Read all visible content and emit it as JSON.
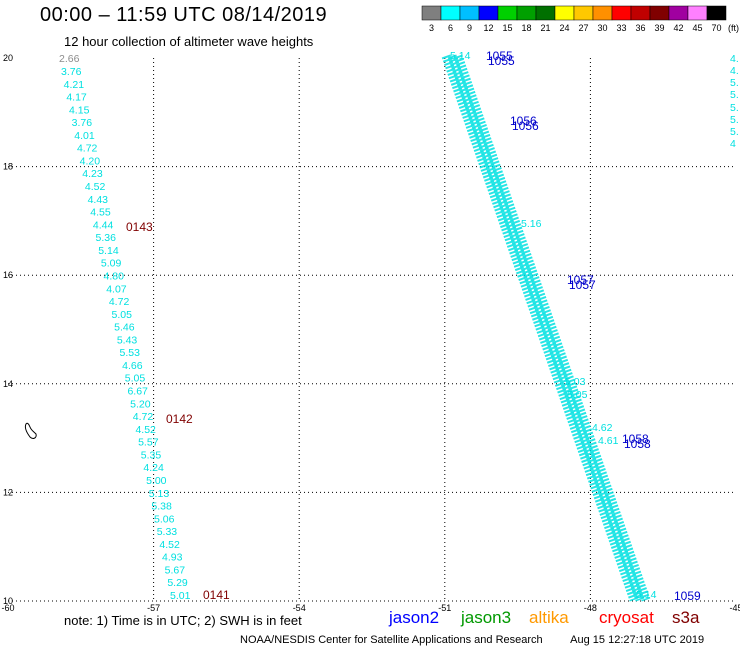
{
  "header": {
    "title": "00:00 – 11:59 UTC 08/14/2019",
    "subtitle": "12 hour collection of altimeter wave heights"
  },
  "legend": {
    "unit": "(ft)",
    "bins": [
      {
        "label": "3",
        "color": "#7f7f7f"
      },
      {
        "label": "6",
        "color": "#00ffff"
      },
      {
        "label": "9",
        "color": "#00bfff"
      },
      {
        "label": "12",
        "color": "#0000ff"
      },
      {
        "label": "15",
        "color": "#00d000"
      },
      {
        "label": "18",
        "color": "#00a000"
      },
      {
        "label": "21",
        "color": "#007000"
      },
      {
        "label": "24",
        "color": "#ffff00"
      },
      {
        "label": "27",
        "color": "#ffc800"
      },
      {
        "label": "30",
        "color": "#ff9000"
      },
      {
        "label": "33",
        "color": "#ff0000"
      },
      {
        "label": "36",
        "color": "#c00000"
      },
      {
        "label": "39",
        "color": "#800000"
      },
      {
        "label": "42",
        "color": "#a000a0"
      },
      {
        "label": "45",
        "color": "#ff80ff"
      },
      {
        "label": "70",
        "color": "#000000"
      }
    ]
  },
  "map": {
    "lon_range": [
      -60,
      -45
    ],
    "lat_range": [
      10,
      20
    ],
    "lon_ticks": [
      "-60",
      "-57",
      "-54",
      "-51",
      "-48",
      "-45"
    ],
    "lat_ticks": [
      "20",
      "18",
      "16",
      "14",
      "12",
      "10"
    ]
  },
  "tracks": {
    "left_track": {
      "color": "#00e0e0",
      "values": [
        "3.76",
        "4.21",
        "4.17",
        "4.15",
        "3.76",
        "4.01",
        "4.72",
        "4.20",
        "4.23",
        "4.52",
        "4.43",
        "4.55",
        "4.44",
        "5.36",
        "5.14",
        "5.09",
        "4.80",
        "4.07",
        "4.72",
        "5.05",
        "5.46",
        "5.43",
        "5.53",
        "4.66",
        "5.05",
        "6.67",
        "5.20",
        "4.72",
        "4.52",
        "5.57",
        "5.35",
        "4.24",
        "5.00",
        "5.13",
        "5.38",
        "5.06",
        "5.33",
        "4.52",
        "4.93",
        "5.67",
        "5.29",
        "5.01"
      ],
      "first_value": "2.66",
      "first_color": "#8c8c8c",
      "time_labels": [
        {
          "text": "0143",
          "color": "#800000"
        },
        {
          "text": "0142",
          "color": "#800000"
        },
        {
          "text": "0141",
          "color": "#800000"
        }
      ]
    },
    "right_track": {
      "color": "#00e0e0",
      "top_value": "5.14",
      "bottom_value": "5.14",
      "mid_values": [
        "5.16",
        "5.03",
        "5.05",
        "4.62",
        "4.61"
      ],
      "time_labels": [
        {
          "text": "1055",
          "color": "#0000cc"
        },
        {
          "text": "1056",
          "color": "#0000cc"
        },
        {
          "text": "1057",
          "color": "#0000cc"
        },
        {
          "text": "1058",
          "color": "#0000cc"
        },
        {
          "text": "1059",
          "color": "#0000cc"
        }
      ],
      "edge_values": [
        "4.",
        "4.",
        "5.",
        "5.",
        "5.",
        "5.",
        "5.",
        "4"
      ]
    }
  },
  "footer": {
    "note": "note:  1) Time is in UTC;  2) SWH is in feet",
    "satellites": [
      {
        "name": "jason2",
        "color": "#0000ff"
      },
      {
        "name": "jason3",
        "color": "#009900"
      },
      {
        "name": "altika",
        "color": "#ff9900"
      },
      {
        "name": "cryosat",
        "color": "#ff0000"
      },
      {
        "name": "s3a",
        "color": "#800000"
      }
    ],
    "credit": "NOAA/NESDIS Center for Satellite Applications and Research",
    "timestamp": "Aug 15 12:27:18 UTC 2019"
  }
}
